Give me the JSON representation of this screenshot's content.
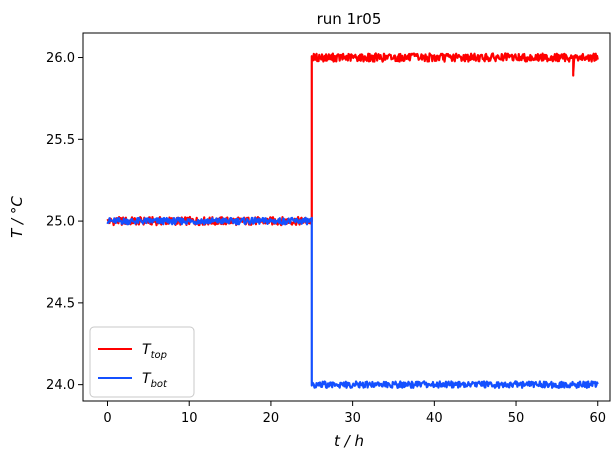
{
  "chart_data": {
    "type": "line",
    "title": "run 1r05",
    "xlabel": "t / h",
    "ylabel": "T / °C",
    "xlim": [
      -3,
      61.5
    ],
    "ylim": [
      23.9,
      26.15
    ],
    "xticks": [
      0,
      10,
      20,
      30,
      40,
      50,
      60
    ],
    "yticks": [
      24.0,
      24.5,
      25.0,
      25.5,
      26.0
    ],
    "xtick_labels": [
      "0",
      "10",
      "20",
      "30",
      "40",
      "50",
      "60"
    ],
    "ytick_labels": [
      "24.0",
      "24.5",
      "25.0",
      "25.5",
      "26.0"
    ],
    "grid": false,
    "legend_position": "lower-left",
    "series": [
      {
        "name": "T_top",
        "legend_main": "T",
        "legend_sub": "top",
        "color": "#ff0000",
        "x": [
          0,
          25,
          25,
          57,
          57,
          57.1,
          60
        ],
        "y": [
          25.0,
          25.0,
          26.0,
          26.0,
          25.89,
          26.0,
          26.0
        ],
        "noise_amplitude": 0.025
      },
      {
        "name": "T_bot",
        "legend_main": "T",
        "legend_sub": "bot",
        "color": "#1450ff",
        "x": [
          0,
          25,
          25,
          60
        ],
        "y": [
          25.0,
          25.0,
          24.0,
          24.0
        ],
        "noise_amplitude": 0.02
      }
    ]
  }
}
